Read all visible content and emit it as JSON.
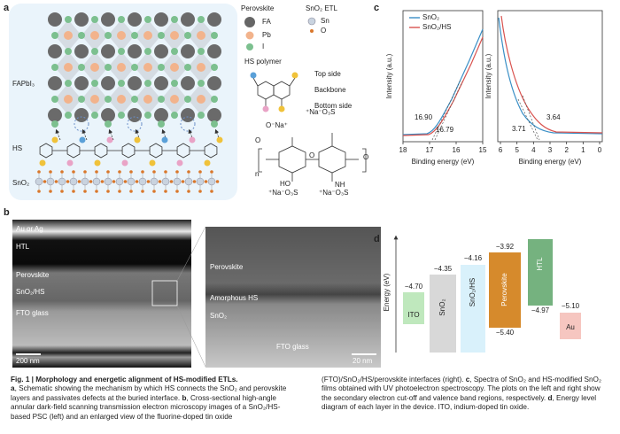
{
  "panel_labels": [
    "a",
    "b",
    "c",
    "d"
  ],
  "panel_a": {
    "legend_perovskite": "Perovskite",
    "fa": "FA",
    "pb": "Pb",
    "i": "I",
    "legend_etl": "SnO₂ ETL",
    "sn": "Sn",
    "o": "O",
    "hs_polymer": "HS polymer",
    "top_side": "Top side",
    "backbone": "Backbone",
    "bottom_side": "Bottom side",
    "layer_fapbi3": "FAPbI₃",
    "layer_hs": "HS",
    "layer_sno2": "SnO₂",
    "structure": [
      "O⁻Na⁺",
      "⁺Na⁻O₃S",
      "O",
      "n",
      "HO",
      "O",
      "NH",
      "⁺Na⁻O₃S",
      "⁺Na⁻O₃S",
      "O"
    ]
  },
  "panel_b": {
    "left_labels": [
      "Au or Ag",
      "HTL",
      "Perovskite",
      "SnO₂/HS",
      "FTO glass"
    ],
    "left_scale": "200 nm",
    "right_labels": [
      "Perovskite",
      "Amorphous HS",
      "SnO₂",
      "FTO glass"
    ],
    "right_scale": "20 nm"
  },
  "panel_c": {
    "y_label": "Intensity (a.u.)",
    "x_label": "Binding energy (eV)",
    "legend": [
      "SnO₂",
      "SnO₂/HS"
    ],
    "left_ticks": [
      "18",
      "17",
      "16",
      "15"
    ],
    "left_annotations": [
      "16.90",
      "16.79"
    ],
    "right_ticks": [
      "6",
      "5",
      "4",
      "3",
      "2",
      "1",
      "0"
    ],
    "right_annotations": [
      "3.71",
      "3.64"
    ]
  },
  "panel_d": {
    "y_label": "Energy (eV)",
    "layers": [
      {
        "name": "ITO",
        "levels": [
          "−4.70"
        ]
      },
      {
        "name": "SnO₂",
        "levels": [
          "−4.35"
        ]
      },
      {
        "name": "SnO₂/HS",
        "levels": [
          "−4.16"
        ]
      },
      {
        "name": "Perovskite",
        "levels": [
          "−3.92",
          "−5.40"
        ]
      },
      {
        "name": "HTL",
        "levels": [
          "−4.97"
        ]
      },
      {
        "name": "Au",
        "levels": [
          "−5.10"
        ]
      }
    ]
  },
  "caption": {
    "title": "Fig. 1 | Morphology and energetic alignment of HS-modified ETLs.",
    "items": [
      {
        "letter": "a",
        "text": ", Schematic showing the mechanism by which HS connects the SnO₂ and perovskite layers and passivates defects at the buried interface. "
      },
      {
        "letter": "b",
        "text": ", Cross-sectional high-angle annular dark-field scanning transmission electron microscopy images of a SnO₂/HS-based PSC (left) and an enlarged view of the fluorine-doped tin oxide (FTO)/SnO₂/HS/perovskite interfaces (right). "
      },
      {
        "letter": "c",
        "text": ", Spectra of SnO₂ and HS-modified SnO₂ films obtained with UV photoelectron spectroscopy. The plots on the left and right show the secondary electron cut-off and valence band regions, respectively. "
      },
      {
        "letter": "d",
        "text": ", Energy level diagram of each layer in the device. ITO, indium-doped tin oxide."
      }
    ]
  }
}
